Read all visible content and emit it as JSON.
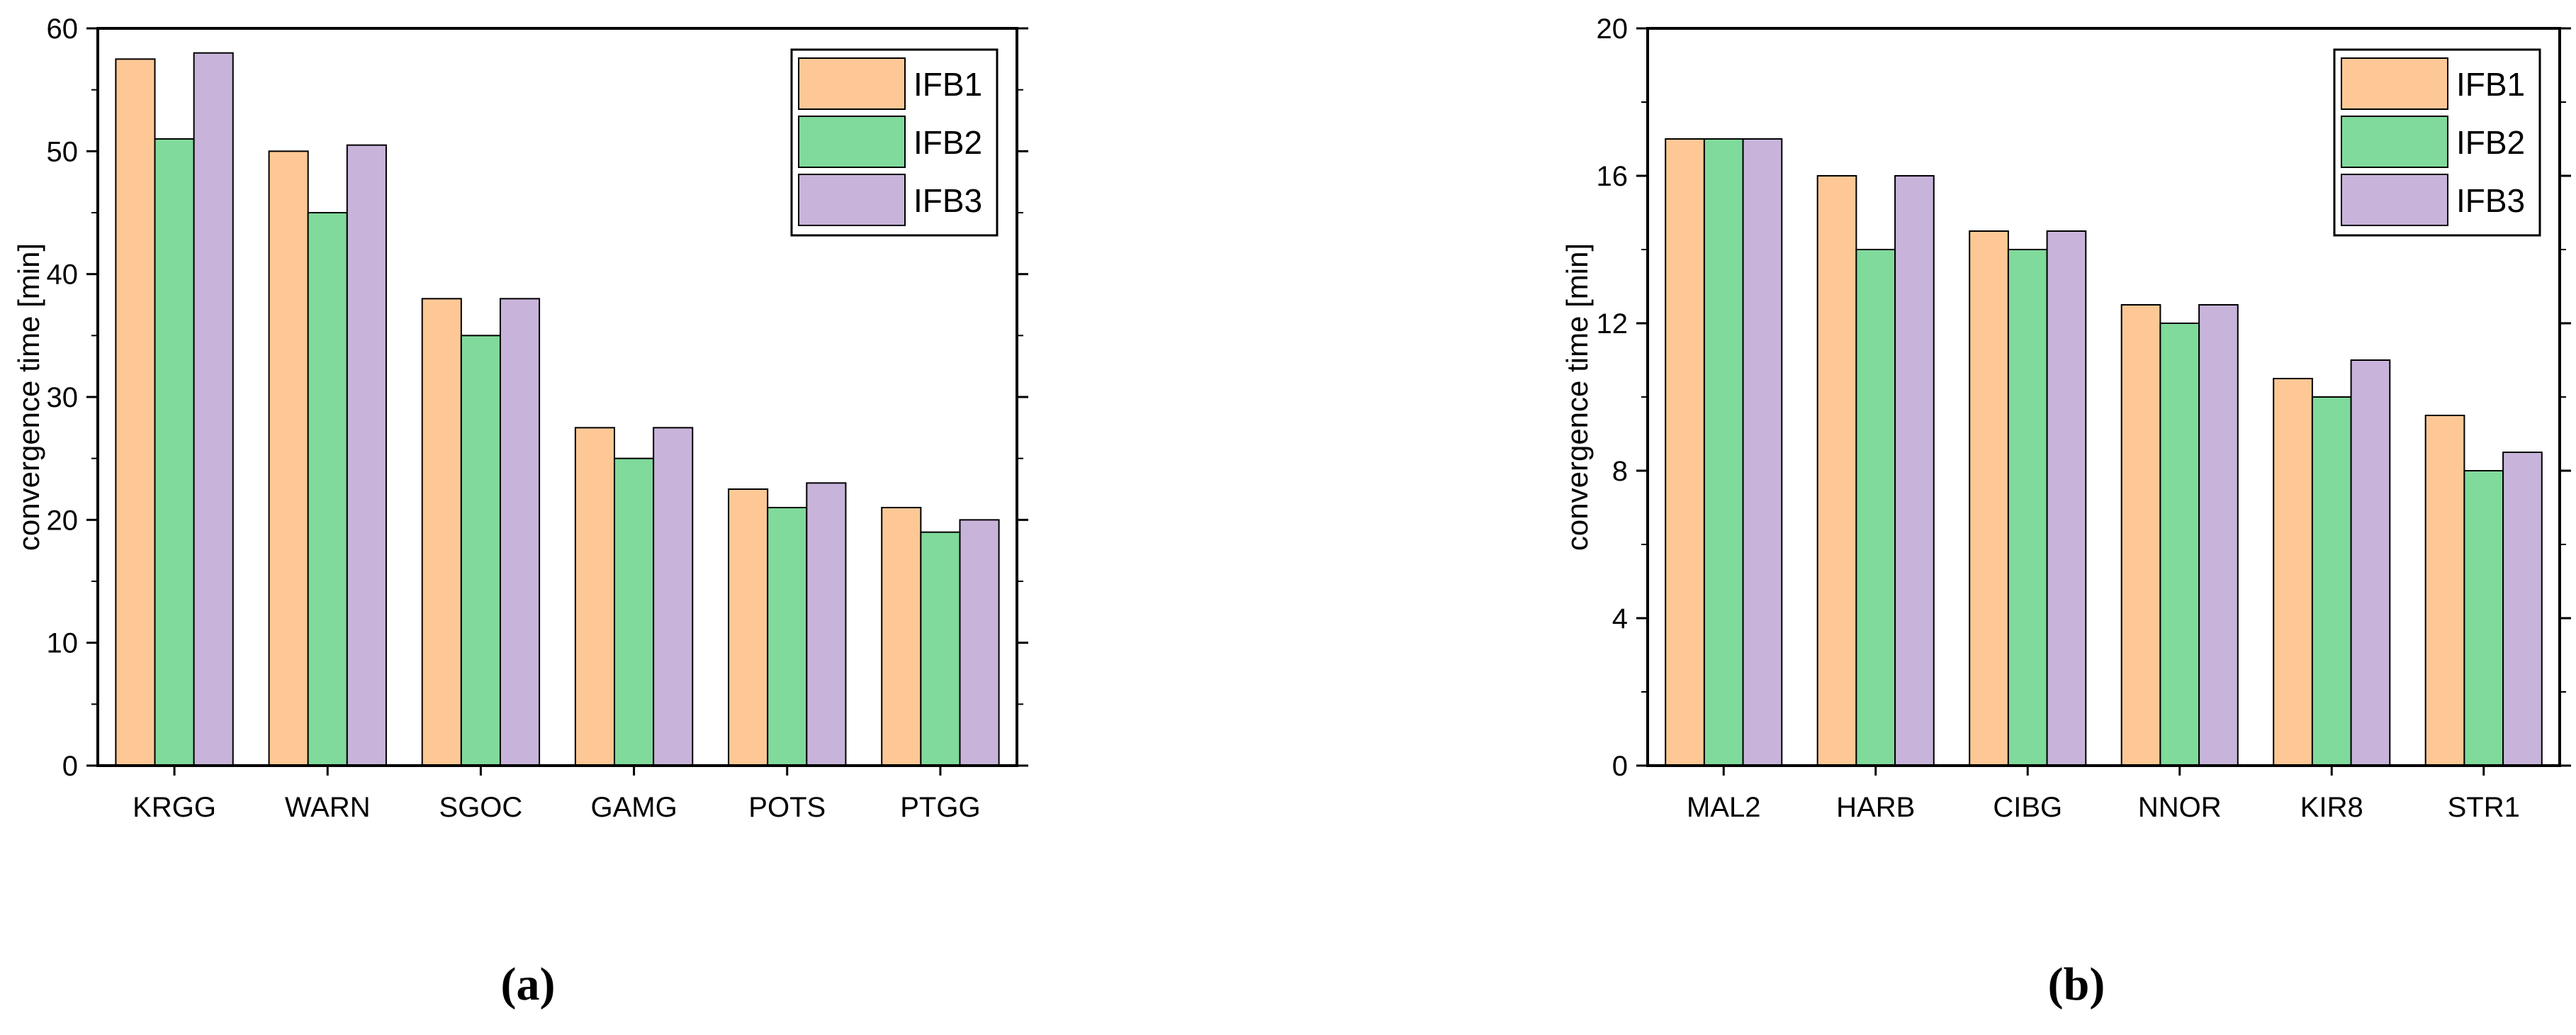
{
  "colors": {
    "IFB1": "#FDC896",
    "IFB2": "#80DA9B",
    "IFB3": "#C8B4DA",
    "axis": "#000000",
    "background": "#FFFFFF"
  },
  "chart_data": [
    {
      "type": "bar",
      "panel_label": "(a)",
      "ylabel": "convergence time [min]",
      "xlabel": "",
      "ylim": [
        0,
        60
      ],
      "yticks": [
        0,
        10,
        20,
        30,
        40,
        50,
        60
      ],
      "categories": [
        "KRGG",
        "WARN",
        "SGOC",
        "GAMG",
        "POTS",
        "PTGG"
      ],
      "legend_position": "top-right",
      "series": [
        {
          "name": "IFB1",
          "values": [
            57.5,
            50,
            38,
            27.5,
            22.5,
            21
          ]
        },
        {
          "name": "IFB2",
          "values": [
            51,
            45,
            35,
            25,
            21,
            19
          ]
        },
        {
          "name": "IFB3",
          "values": [
            58,
            50.5,
            38,
            27.5,
            23,
            20
          ]
        }
      ]
    },
    {
      "type": "bar",
      "panel_label": "(b)",
      "ylabel": "convergence time [min]",
      "xlabel": "",
      "ylim": [
        0,
        20
      ],
      "yticks": [
        0,
        4,
        8,
        12,
        16,
        20
      ],
      "categories": [
        "MAL2",
        "HARB",
        "CIBG",
        "NNOR",
        "KIR8",
        "STR1"
      ],
      "legend_position": "top-right",
      "series": [
        {
          "name": "IFB1",
          "values": [
            17,
            16,
            14.5,
            12.5,
            10.5,
            9.5
          ]
        },
        {
          "name": "IFB2",
          "values": [
            17,
            14,
            14,
            12,
            10,
            8
          ]
        },
        {
          "name": "IFB3",
          "values": [
            17,
            16,
            14.5,
            12.5,
            11,
            8.5
          ]
        }
      ]
    }
  ]
}
